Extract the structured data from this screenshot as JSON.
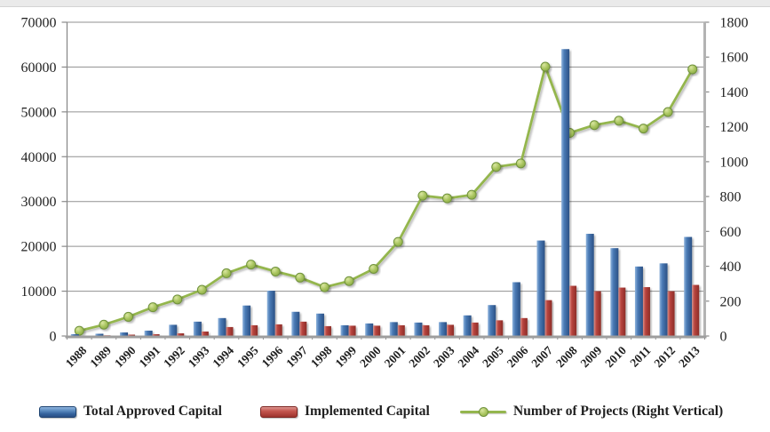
{
  "window": {
    "top_strip_color": "#eaeaea",
    "background_color": "#ffffff"
  },
  "chart_data": {
    "type": "bar",
    "subtype": "combo-bar-line-dual-axis",
    "title": "",
    "xlabel": "",
    "ylabel_left": "",
    "ylabel_right": "",
    "grid": true,
    "legend_position": "bottom",
    "categories": [
      "1988",
      "1989",
      "1990",
      "1991",
      "1992",
      "1993",
      "1994",
      "1995",
      "1996",
      "1997",
      "1998",
      "1999",
      "2000",
      "2001",
      "2002",
      "2003",
      "2004",
      "2005",
      "2006",
      "2007",
      "2008",
      "2009",
      "2010",
      "2011",
      "2012",
      "2013"
    ],
    "series": [
      {
        "name": "Total Approved Capital",
        "type": "bar",
        "axis": "left",
        "color": "#3a6aa5",
        "values": [
          400,
          500,
          800,
          1200,
          2500,
          3200,
          4000,
          6800,
          10100,
          5400,
          5000,
          2400,
          2800,
          3100,
          3000,
          3100,
          4600,
          6900,
          12000,
          21300,
          64000,
          22800,
          19600,
          15500,
          16200,
          22100
        ]
      },
      {
        "name": "Implemented Capital",
        "type": "bar",
        "axis": "left",
        "color": "#b9453f",
        "values": [
          100,
          150,
          300,
          400,
          600,
          1000,
          2000,
          2400,
          2600,
          3200,
          2200,
          2300,
          2300,
          2400,
          2400,
          2500,
          3000,
          3500,
          4000,
          8000,
          11200,
          10000,
          10800,
          10900,
          10000,
          11400
        ]
      },
      {
        "name": "Number of Projects (Right Vertical)",
        "type": "line",
        "axis": "right",
        "color": "#94b64e",
        "values": [
          30,
          65,
          110,
          165,
          210,
          265,
          360,
          410,
          370,
          335,
          280,
          315,
          385,
          540,
          805,
          790,
          810,
          970,
          990,
          1545,
          1165,
          1210,
          1235,
          1190,
          1285,
          1530
        ]
      }
    ],
    "left_axis": {
      "min": 0,
      "max": 70000,
      "step": 10000,
      "tick_labels": [
        "0",
        "10000",
        "20000",
        "30000",
        "40000",
        "50000",
        "60000",
        "70000"
      ]
    },
    "right_axis": {
      "min": 0,
      "max": 1800,
      "step": 200,
      "tick_labels": [
        "0",
        "200",
        "400",
        "600",
        "800",
        "1000",
        "1200",
        "1400",
        "1600",
        "1800"
      ]
    },
    "colors": {
      "gridline": "#919191",
      "axis_line": "#8a8a8a",
      "tick_text": "#1f1f1f",
      "bar_blue_dark": "#2a5084",
      "bar_red_dark": "#9d332e",
      "line_green": "#94b64e",
      "marker_green": "#a8c45e"
    }
  }
}
